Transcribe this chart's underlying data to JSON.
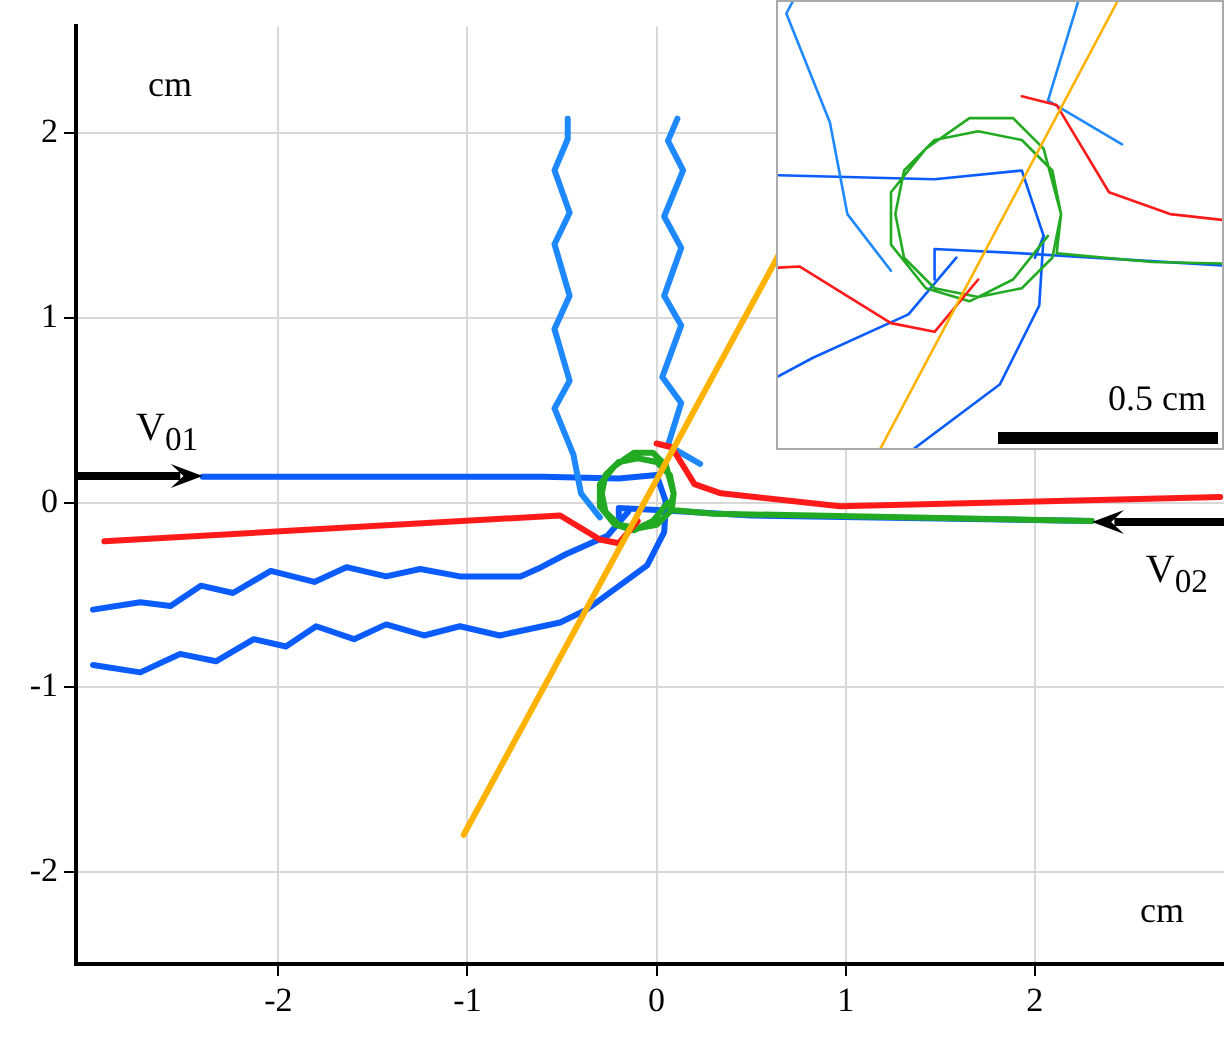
{
  "chart_data": [
    {
      "type": "line",
      "xlim": [
        -3.07,
        3.0
      ],
      "ylim": [
        -2.5,
        2.58
      ],
      "xticks": [
        -2,
        -1,
        0,
        1,
        2
      ],
      "yticks": [
        -2,
        -1,
        0,
        1,
        2
      ],
      "grid": true,
      "xlabel": "cm",
      "ylabel": "cm",
      "annotations": [
        {
          "text": "V$_{01}$",
          "x": -2.4,
          "y": 0.14
        },
        {
          "text": "V$_{02}$",
          "x": 2.3,
          "y": -0.1
        }
      ],
      "series": [
        {
          "type": "line",
          "color": "#ffb300",
          "x": [
            -1.02,
            0.65
          ],
          "values": [
            -1.8,
            1.35
          ]
        },
        {
          "type": "line",
          "color": "#ff1a1a",
          "x": [
            -2.92,
            -0.51,
            -0.3,
            -0.2,
            -0.1
          ],
          "values": [
            -0.21,
            -0.07,
            -0.2,
            -0.22,
            -0.1
          ]
        },
        {
          "type": "line",
          "color": "#ff1a1a",
          "x": [
            0.0,
            0.08,
            0.2,
            0.34,
            0.97,
            2.98
          ],
          "values": [
            0.32,
            0.3,
            0.1,
            0.05,
            -0.02,
            0.03
          ]
        },
        {
          "type": "line",
          "color": "#1e88ff",
          "x": [
            -0.47,
            -0.47,
            -0.54,
            -0.46,
            -0.54,
            -0.46,
            -0.54,
            -0.46,
            -0.54,
            -0.44,
            -0.4,
            -0.3
          ],
          "values": [
            2.08,
            1.97,
            1.8,
            1.57,
            1.4,
            1.12,
            0.94,
            0.66,
            0.51,
            0.26,
            0.05,
            -0.08
          ]
        },
        {
          "type": "line",
          "color": "#1e88ff",
          "x": [
            0.11,
            0.06,
            0.14,
            0.04,
            0.13,
            0.04,
            0.13,
            0.03,
            0.13,
            0.06,
            0.23
          ],
          "values": [
            2.08,
            1.96,
            1.8,
            1.55,
            1.38,
            1.12,
            0.96,
            0.68,
            0.54,
            0.31,
            0.21
          ]
        },
        {
          "type": "line",
          "color": "#22aa22",
          "x": [
            2.3,
            0.3,
            0.08,
            0.09,
            0.07,
            0.0,
            -0.1,
            -0.2,
            -0.27,
            -0.29,
            -0.27,
            -0.2,
            -0.1,
            0.0,
            0.07,
            0.09,
            0.05,
            -0.02,
            -0.12,
            -0.22,
            -0.3,
            -0.3,
            -0.22,
            -0.12,
            -0.02,
            0.06
          ],
          "values": [
            -0.1,
            -0.06,
            -0.04,
            0.05,
            0.15,
            0.22,
            0.24,
            0.22,
            0.15,
            0.05,
            -0.05,
            -0.12,
            -0.14,
            -0.12,
            -0.05,
            0.05,
            0.2,
            0.27,
            0.27,
            0.2,
            0.1,
            -0.02,
            -0.12,
            -0.15,
            -0.1,
            0.0
          ]
        },
        {
          "type": "line",
          "color": "#0a5cff",
          "x": [
            -2.98,
            -2.73,
            -2.57,
            -2.41,
            -2.24,
            -2.04,
            -1.81,
            -1.64,
            -1.43,
            -1.25,
            -1.04,
            -0.72,
            -0.61,
            -0.48,
            -0.26,
            -0.15
          ],
          "values": [
            -0.58,
            -0.54,
            -0.56,
            -0.45,
            -0.49,
            -0.37,
            -0.43,
            -0.35,
            -0.4,
            -0.36,
            -0.4,
            -0.4,
            -0.35,
            -0.28,
            -0.18,
            -0.05
          ]
        },
        {
          "type": "line",
          "color": "#0a5cff",
          "x": [
            -2.98,
            -2.73,
            -2.52,
            -2.33,
            -2.13,
            -1.96,
            -1.8,
            -1.6,
            -1.43,
            -1.23,
            -1.04,
            -0.83,
            -0.51,
            -0.37,
            -0.05,
            0.04,
            0.05
          ],
          "values": [
            -0.88,
            -0.92,
            -0.82,
            -0.86,
            -0.74,
            -0.78,
            -0.67,
            -0.74,
            -0.66,
            -0.72,
            -0.67,
            -0.72,
            -0.65,
            -0.58,
            -0.34,
            -0.16,
            0.0
          ]
        },
        {
          "type": "line",
          "color": "#0a5cff",
          "x": [
            -2.4,
            -0.6,
            -0.2,
            0.0,
            0.05,
            0.03
          ],
          "values": [
            0.14,
            0.14,
            0.13,
            0.15,
            0.0,
            -0.05
          ]
        },
        {
          "type": "line",
          "color": "#0a5cff",
          "x": [
            2.3,
            0.5,
            0.0,
            -0.2,
            -0.2
          ],
          "values": [
            -0.1,
            -0.07,
            -0.04,
            -0.03,
            -0.1
          ]
        }
      ]
    },
    {
      "type": "other",
      "annotations": [
        "0.5 cm"
      ]
    }
  ]
}
